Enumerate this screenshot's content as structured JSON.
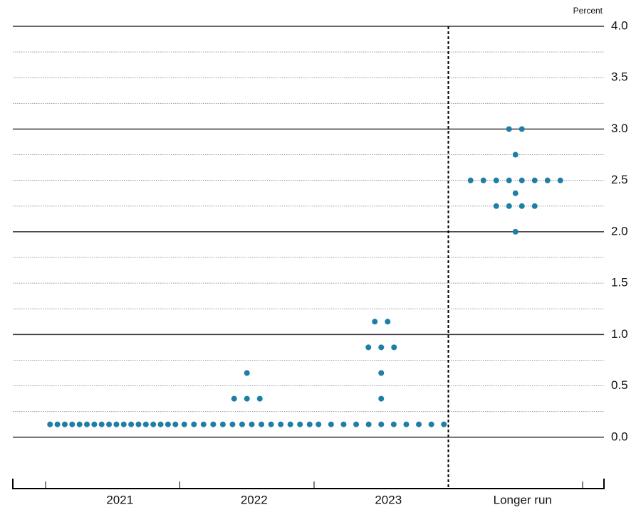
{
  "chart_data": {
    "type": "dot",
    "y_label": "Percent",
    "categories": [
      "2021",
      "2022",
      "2023",
      "Longer run"
    ],
    "values": [
      [
        0.125,
        0.125,
        0.125,
        0.125,
        0.125,
        0.125,
        0.125,
        0.125,
        0.125,
        0.125,
        0.125,
        0.125,
        0.125,
        0.125,
        0.125,
        0.125,
        0.125,
        0.125
      ],
      [
        0.125,
        0.125,
        0.125,
        0.125,
        0.125,
        0.125,
        0.125,
        0.125,
        0.125,
        0.125,
        0.125,
        0.125,
        0.125,
        0.125,
        0.375,
        0.375,
        0.375,
        0.625
      ],
      [
        0.125,
        0.125,
        0.125,
        0.125,
        0.125,
        0.125,
        0.125,
        0.125,
        0.125,
        0.125,
        0.125,
        0.375,
        0.625,
        0.875,
        0.875,
        0.875,
        1.125,
        1.125
      ],
      [
        2.0,
        2.25,
        2.25,
        2.25,
        2.25,
        2.375,
        2.5,
        2.5,
        2.5,
        2.5,
        2.5,
        2.5,
        2.5,
        2.5,
        2.75,
        3.0,
        3.0
      ]
    ],
    "color": "#1f7ea6",
    "ylim": [
      -0.5,
      4.0
    ],
    "yticks": [
      {
        "value": 0,
        "label": "0.0"
      },
      0.5,
      {
        "value": 1,
        "label": "1.0"
      },
      1.5,
      {
        "value": 2,
        "label": "2.0"
      },
      2.5,
      {
        "value": 3,
        "label": "3.0"
      },
      3.5,
      {
        "value": 4,
        "label": "4.0"
      }
    ],
    "minor_yticks": [
      0.25,
      0.75,
      1.25,
      1.75,
      2.25,
      2.75,
      3.25,
      3.75
    ],
    "grid": true
  }
}
